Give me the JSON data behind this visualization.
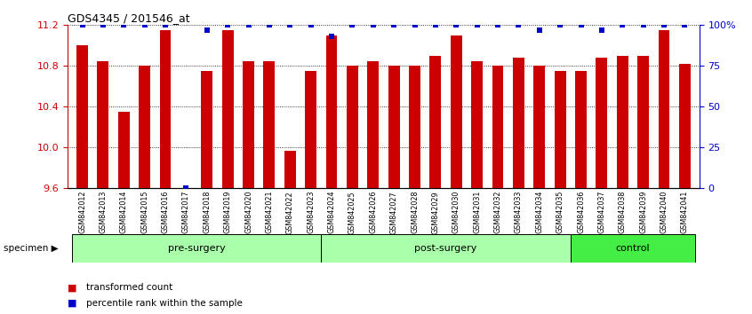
{
  "title": "GDS4345 / 201546_at",
  "categories": [
    "GSM842012",
    "GSM842013",
    "GSM842014",
    "GSM842015",
    "GSM842016",
    "GSM842017",
    "GSM842018",
    "GSM842019",
    "GSM842020",
    "GSM842021",
    "GSM842022",
    "GSM842023",
    "GSM842024",
    "GSM842025",
    "GSM842026",
    "GSM842027",
    "GSM842028",
    "GSM842029",
    "GSM842030",
    "GSM842031",
    "GSM842032",
    "GSM842033",
    "GSM842034",
    "GSM842035",
    "GSM842036",
    "GSM842037",
    "GSM842038",
    "GSM842039",
    "GSM842040",
    "GSM842041"
  ],
  "bar_values": [
    11.0,
    10.85,
    10.35,
    10.8,
    11.15,
    9.6,
    10.75,
    11.15,
    10.85,
    10.85,
    9.97,
    10.75,
    11.1,
    10.8,
    10.85,
    10.8,
    10.8,
    10.9,
    11.1,
    10.85,
    10.8,
    10.88,
    10.8,
    10.75,
    10.75,
    10.88,
    10.9,
    10.9,
    11.15,
    10.82
  ],
  "percentile_values": [
    100,
    100,
    100,
    100,
    100,
    0,
    97,
    100,
    100,
    100,
    100,
    100,
    93,
    100,
    100,
    100,
    100,
    100,
    100,
    100,
    100,
    100,
    97,
    100,
    100,
    97,
    100,
    100,
    100,
    100
  ],
  "bar_color": "#cc0000",
  "percentile_color": "#0000cc",
  "ylim_left": [
    9.6,
    11.2
  ],
  "ylim_right": [
    0,
    100
  ],
  "yticks_left": [
    9.6,
    10.0,
    10.4,
    10.8,
    11.2
  ],
  "yticks_right": [
    0,
    25,
    50,
    75,
    100
  ],
  "ytick_labels_right": [
    "0",
    "25",
    "50",
    "75",
    "100%"
  ],
  "groups": [
    {
      "label": "pre-surgery",
      "start": 0,
      "end": 12,
      "color": "#aaffaa"
    },
    {
      "label": "post-surgery",
      "start": 12,
      "end": 24,
      "color": "#aaffaa"
    },
    {
      "label": "control",
      "start": 24,
      "end": 30,
      "color": "#44ee44"
    }
  ],
  "specimen_label": "specimen",
  "legend_bar_label": "transformed count",
  "legend_pct_label": "percentile rank within the sample",
  "tick_bg_color": "#cccccc",
  "background_color": "#ffffff"
}
